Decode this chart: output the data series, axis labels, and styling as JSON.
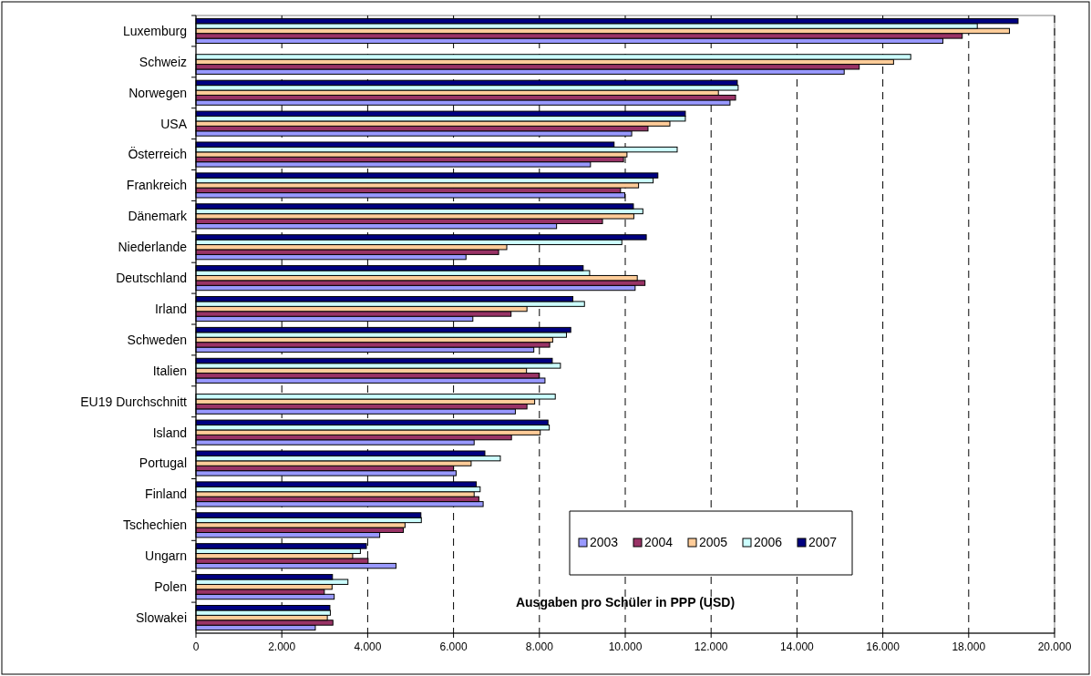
{
  "chart_data": {
    "type": "bar",
    "orientation": "horizontal",
    "xlabel": "Ausgaben pro Schüler in PPP (USD)",
    "categories": [
      "Luxemburg",
      "Schweiz",
      "Norwegen",
      "USA",
      "Österreich",
      "Frankreich",
      "Dänemark",
      "Niederlande",
      "Deutschland",
      "Irland",
      "Schweden",
      "Italien",
      "EU19 Durchschnitt",
      "Island",
      "Portugal",
      "Finland",
      "Tschechien",
      "Ungarn",
      "Polen",
      "Slowakei"
    ],
    "series": [
      {
        "name": "2003",
        "color": "#9999ff",
        "values": [
          17400,
          15100,
          12440,
          10150,
          9190,
          9990,
          8400,
          6290,
          10230,
          6450,
          7870,
          8130,
          7440,
          6480,
          6060,
          6690,
          4280,
          4660,
          3220,
          2780
        ]
      },
      {
        "name": "2004",
        "color": "#993366",
        "values": [
          17850,
          15450,
          12570,
          10530,
          9960,
          9890,
          9470,
          7050,
          10460,
          7340,
          8240,
          7990,
          7710,
          7350,
          6000,
          6590,
          4830,
          4010,
          2990,
          3190
        ]
      },
      {
        "name": "2005",
        "color": "#ffcc99",
        "values": [
          18950,
          16250,
          12170,
          11040,
          10040,
          10310,
          10200,
          7240,
          10280,
          7710,
          8310,
          7700,
          7890,
          8020,
          6410,
          6480,
          4870,
          3650,
          3170,
          3060
        ]
      },
      {
        "name": "2006",
        "color": "#ccffff",
        "values": [
          18200,
          16650,
          12630,
          11400,
          11210,
          10650,
          10410,
          9920,
          9170,
          9050,
          8630,
          8490,
          8370,
          8230,
          7090,
          6620,
          5250,
          3830,
          3540,
          3130
        ]
      },
      {
        "name": "2007",
        "color": "#000080",
        "values": [
          19150,
          null,
          12610,
          11400,
          9740,
          10760,
          10190,
          10490,
          9020,
          8780,
          8730,
          8300,
          null,
          8200,
          6730,
          6530,
          5240,
          3970,
          3180,
          3120
        ]
      }
    ],
    "xlim": [
      0,
      20000
    ],
    "xticks": [
      0,
      {
        "value": 2000,
        "label": "2.000"
      },
      {
        "value": 4000,
        "label": "4.000"
      },
      {
        "value": 6000,
        "label": "6.000"
      },
      {
        "value": 8000,
        "label": "8.000"
      },
      {
        "value": 10000,
        "label": "10.000"
      },
      {
        "value": 12000,
        "label": "12.000"
      },
      {
        "value": 14000,
        "label": "14.000"
      },
      {
        "value": 16000,
        "label": "16.000"
      },
      {
        "value": 18000,
        "label": "18.000"
      },
      {
        "value": 20000,
        "label": "20.000"
      }
    ],
    "grid": "x",
    "legend": "bottom right"
  }
}
